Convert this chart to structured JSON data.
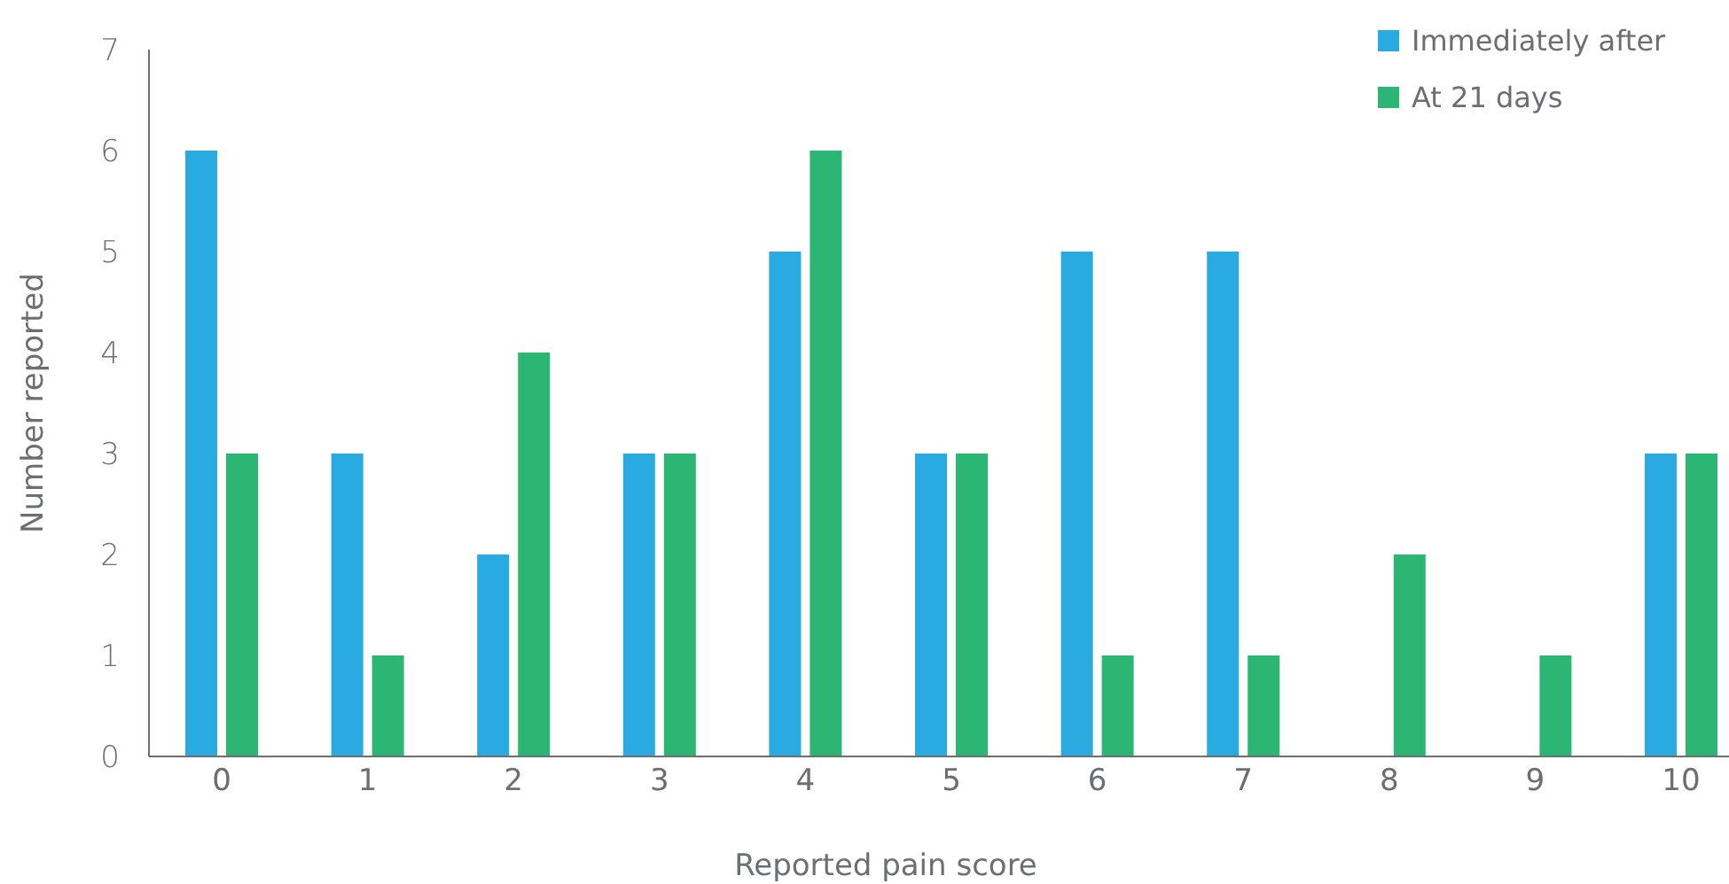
{
  "chart_data": {
    "type": "bar",
    "xlabel": "Reported pain score",
    "ylabel": "Number reported",
    "categories": [
      "0",
      "1",
      "2",
      "3",
      "4",
      "5",
      "6",
      "7",
      "8",
      "9",
      "10"
    ],
    "series": [
      {
        "name": "Immediately after",
        "color": "#29abe2",
        "values": [
          6,
          3,
          2,
          3,
          5,
          3,
          5,
          5,
          0,
          0,
          3
        ]
      },
      {
        "name": "At 21 days",
        "color": "#2bb673",
        "values": [
          3,
          1,
          4,
          3,
          6,
          3,
          1,
          1,
          2,
          1,
          3
        ]
      }
    ],
    "ylim": [
      0,
      7
    ],
    "yticks": [
      0,
      1,
      2,
      3,
      4,
      5,
      6,
      7
    ],
    "grid": false,
    "legend": "top right"
  }
}
